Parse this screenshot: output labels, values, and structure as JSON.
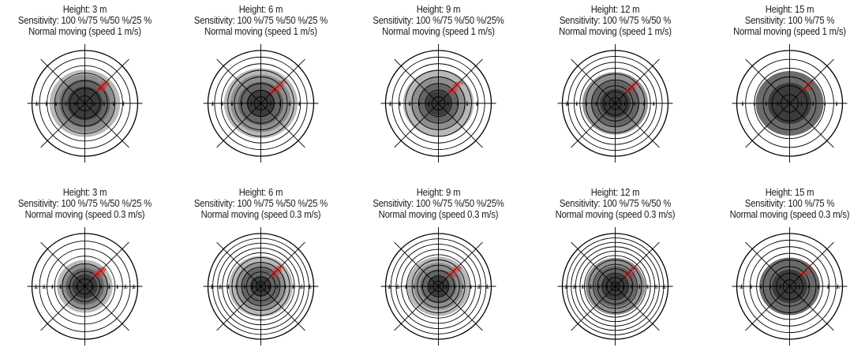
{
  "panels": [
    {
      "height": "Height: 3 m",
      "sensitivity": "Sensitivity: 100 %/75 %/50 %/25 %",
      "mode": "Normal moving (speed 1 m/s)",
      "zone_labels": [
        "100%",
        "75%",
        "50%",
        "25%"
      ],
      "zone_levels": [
        1.0,
        0.75,
        0.5,
        0.25
      ],
      "zone_radii": [
        3.5,
        5.0,
        6.0,
        7.0
      ],
      "rings": 7,
      "axis_ticks": [
        "10",
        "8",
        "6",
        "4",
        "2",
        "2",
        "4",
        "6",
        "8"
      ]
    },
    {
      "height": "Height: 6 m",
      "sensitivity": "Sensitivity: 100 %/75 %/50 %/25 %",
      "mode": "Normal moving (speed 1 m/s)",
      "zone_labels": [
        "100%",
        "75%",
        "50%",
        "25%"
      ],
      "zone_levels": [
        1.0,
        0.75,
        0.5,
        0.25
      ],
      "zone_radii": [
        2.8,
        4.5,
        6.0,
        7.3
      ],
      "rings": 8,
      "axis_ticks": [
        "10",
        "8",
        "6",
        "4",
        "2",
        "2",
        "4",
        "6",
        "8"
      ]
    },
    {
      "height": "Height: 9 m",
      "sensitivity": "Sensitivity: 100 %/75 %/50 %/25%",
      "mode": "Normal moving (speed 1 m/s)",
      "zone_labels": [
        "100%",
        "75%",
        "50%",
        "25%"
      ],
      "zone_levels": [
        1.0,
        0.75,
        0.5,
        0.25
      ],
      "zone_radii": [
        2.5,
        4.0,
        5.5,
        7.0
      ],
      "rings": 8,
      "axis_ticks": [
        "10",
        "8",
        "6",
        "4",
        "2",
        "2",
        "4",
        "6",
        "8"
      ]
    },
    {
      "height": "Height: 12 m",
      "sensitivity": "Sensitivity: 100 %/75 %/50 %",
      "mode": "Normal moving (speed 1 m/s)",
      "zone_labels": [
        "100%",
        "75%",
        "50%"
      ],
      "zone_levels": [
        1.0,
        0.75,
        0.5
      ],
      "zone_radii": [
        3.0,
        4.8,
        6.5
      ],
      "rings": 9,
      "axis_ticks": [
        "10",
        "8",
        "6",
        "4",
        "2",
        "2",
        "4",
        "6",
        "8"
      ]
    },
    {
      "height": "Height: 15 m",
      "sensitivity": "Sensitivity: 100 %/75 %",
      "mode": "Normal moving (speed 1 m/s)",
      "zone_labels": [
        "100%",
        "75%"
      ],
      "zone_levels": [
        1.0,
        0.75
      ],
      "zone_radii": [
        3.5,
        5.5
      ],
      "rings": 6,
      "axis_ticks": [
        "8",
        "6",
        "4",
        "2",
        "2",
        "4",
        "6",
        "8"
      ]
    },
    {
      "height": "Height: 3 m",
      "sensitivity": "Sensitivity: 100 %/75 %/50 %/25 %",
      "mode": "Normal moving (speed 0.3 m/s)",
      "zone_labels": [
        "100%",
        "75%",
        "50%",
        "25%"
      ],
      "zone_levels": [
        1.0,
        0.75,
        0.5,
        0.25
      ],
      "zone_radii": [
        3.0,
        4.5,
        5.5,
        6.5
      ],
      "rings": 7,
      "axis_ticks": [
        "12",
        "10",
        "8",
        "6",
        "4",
        "2",
        "2",
        "4",
        "6",
        "8",
        "10",
        "12"
      ]
    },
    {
      "height": "Height: 6 m",
      "sensitivity": "Sensitivity: 100 %/75 %/50 %/25 %",
      "mode": "Normal moving (speed 0.3 m/s)",
      "zone_labels": [
        "100%",
        "75%",
        "50%",
        "25%"
      ],
      "zone_levels": [
        1.0,
        0.75,
        0.5,
        0.25
      ],
      "zone_radii": [
        2.5,
        4.5,
        6.0,
        7.5
      ],
      "rings": 11,
      "axis_ticks": [
        "12",
        "10",
        "8",
        "6",
        "4",
        "2",
        "2",
        "4",
        "6",
        "8",
        "10",
        "12"
      ]
    },
    {
      "height": "Height: 9 m",
      "sensitivity": "Sensitivity: 100 %/75 %/50 %/25%",
      "mode": "Normal moving (speed 0.3 m/s)",
      "zone_labels": [
        "100%",
        "75%",
        "50%",
        "25%"
      ],
      "zone_levels": [
        1.0,
        0.75,
        0.5,
        0.25
      ],
      "zone_radii": [
        2.5,
        4.2,
        5.8,
        7.3
      ],
      "rings": 10,
      "axis_ticks": [
        "12",
        "10",
        "8",
        "6",
        "4",
        "2",
        "2",
        "4",
        "6",
        "8",
        "10",
        "12"
      ]
    },
    {
      "height": "Height: 12 m",
      "sensitivity": "Sensitivity: 100 %/75 %/50 %",
      "mode": "Normal moving (speed 0.3 m/s)",
      "zone_labels": [
        "100%",
        "75%",
        "50%"
      ],
      "zone_levels": [
        1.0,
        0.75,
        0.5
      ],
      "zone_radii": [
        3.0,
        5.0,
        7.0
      ],
      "rings": 12,
      "axis_ticks": [
        "12",
        "10",
        "8",
        "6",
        "4",
        "2",
        "2",
        "4",
        "6",
        "8",
        "10",
        "12"
      ]
    },
    {
      "height": "Height: 15 m",
      "sensitivity": "Sensitivity: 100 %/75 %",
      "mode": "Normal moving (speed 0.3 m/s)",
      "zone_labels": [
        "100%",
        "75%"
      ],
      "zone_levels": [
        1.0,
        0.75
      ],
      "zone_radii": [
        3.5,
        6.0
      ],
      "rings": 8,
      "axis_ticks": [
        "10",
        "8",
        "6",
        "4",
        "2",
        "2",
        "4",
        "6",
        "8",
        "10"
      ]
    }
  ],
  "colors": {
    "zone_label_red": "#e0201e",
    "zone_fill_dark": "#3a3a3a",
    "zone_fill_light": "#dcdcdc",
    "line": "#000000"
  }
}
